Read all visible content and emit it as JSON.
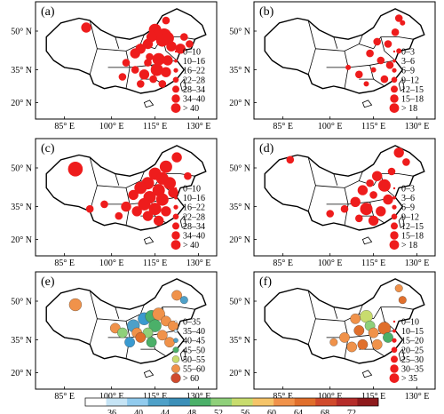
{
  "axes": {
    "lat_labels": [
      "50° N",
      "35° N",
      "20° N"
    ],
    "lon_labels": [
      "85° E",
      "100° E",
      "115° E",
      "130° E"
    ]
  },
  "panels": [
    {
      "id": "a",
      "label": "(a)",
      "legend_type": "size",
      "legend": [
        "0–10",
        "10–16",
        "16–22",
        "22–28",
        "28–34",
        "34–40",
        "> 40"
      ],
      "stations": [
        [
          0.28,
          0.22,
          3
        ],
        [
          0.72,
          0.16,
          2
        ],
        [
          0.66,
          0.24,
          4
        ],
        [
          0.68,
          0.28,
          4
        ],
        [
          0.71,
          0.29,
          5
        ],
        [
          0.73,
          0.31,
          4
        ],
        [
          0.7,
          0.33,
          4
        ],
        [
          0.64,
          0.3,
          3
        ],
        [
          0.62,
          0.36,
          3
        ],
        [
          0.75,
          0.38,
          3
        ],
        [
          0.8,
          0.4,
          3
        ],
        [
          0.58,
          0.4,
          3
        ],
        [
          0.55,
          0.44,
          3
        ],
        [
          0.63,
          0.47,
          2
        ],
        [
          0.68,
          0.49,
          4
        ],
        [
          0.73,
          0.5,
          3
        ],
        [
          0.62,
          0.52,
          2
        ],
        [
          0.67,
          0.58,
          4
        ],
        [
          0.72,
          0.6,
          3
        ],
        [
          0.6,
          0.62,
          3
        ],
        [
          0.55,
          0.58,
          2
        ],
        [
          0.48,
          0.64,
          2
        ],
        [
          0.65,
          0.66,
          2
        ],
        [
          0.7,
          0.7,
          2
        ],
        [
          0.58,
          0.7,
          2
        ],
        [
          0.82,
          0.3,
          2
        ],
        [
          0.85,
          0.36,
          2
        ],
        [
          0.5,
          0.52,
          2
        ]
      ]
    },
    {
      "id": "b",
      "label": "(b)",
      "legend_type": "size",
      "legend": [
        "0–3",
        "3–6",
        "6–9",
        "9–12",
        "12–15",
        "15–18",
        "> 18"
      ],
      "stations": [
        [
          0.8,
          0.14,
          2
        ],
        [
          0.82,
          0.18,
          1
        ],
        [
          0.78,
          0.26,
          2
        ],
        [
          0.74,
          0.36,
          2
        ],
        [
          0.68,
          0.34,
          2
        ],
        [
          0.64,
          0.44,
          2
        ],
        [
          0.7,
          0.5,
          2
        ],
        [
          0.75,
          0.54,
          2
        ],
        [
          0.66,
          0.58,
          1
        ],
        [
          0.58,
          0.62,
          2
        ],
        [
          0.72,
          0.66,
          2
        ],
        [
          0.52,
          0.56,
          1
        ],
        [
          0.62,
          0.7,
          1
        ],
        [
          0.8,
          0.42,
          1
        ]
      ]
    },
    {
      "id": "c",
      "label": "(c)",
      "legend_type": "size",
      "legend": [
        "0–10",
        "10–16",
        "16–22",
        "22–28",
        "28–34",
        "34–40",
        "> 40"
      ],
      "stations": [
        [
          0.22,
          0.26,
          5
        ],
        [
          0.72,
          0.24,
          4
        ],
        [
          0.78,
          0.16,
          3
        ],
        [
          0.66,
          0.3,
          4
        ],
        [
          0.7,
          0.34,
          4
        ],
        [
          0.74,
          0.38,
          4
        ],
        [
          0.62,
          0.38,
          4
        ],
        [
          0.58,
          0.42,
          4
        ],
        [
          0.68,
          0.44,
          4
        ],
        [
          0.76,
          0.46,
          3
        ],
        [
          0.54,
          0.48,
          3
        ],
        [
          0.63,
          0.5,
          4
        ],
        [
          0.7,
          0.52,
          4
        ],
        [
          0.6,
          0.56,
          4
        ],
        [
          0.66,
          0.6,
          4
        ],
        [
          0.72,
          0.62,
          3
        ],
        [
          0.56,
          0.62,
          3
        ],
        [
          0.5,
          0.58,
          3
        ],
        [
          0.62,
          0.66,
          3
        ],
        [
          0.68,
          0.7,
          3
        ],
        [
          0.46,
          0.66,
          2
        ],
        [
          0.38,
          0.56,
          2
        ],
        [
          0.3,
          0.6,
          2
        ],
        [
          0.84,
          0.32,
          2
        ]
      ]
    },
    {
      "id": "d",
      "label": "(d)",
      "legend_type": "size",
      "legend": [
        "0–3",
        "3–6",
        "6–9",
        "9–12",
        "12–15",
        "15–18",
        "> 18"
      ],
      "stations": [
        [
          0.2,
          0.18,
          2
        ],
        [
          0.8,
          0.12,
          3
        ],
        [
          0.84,
          0.2,
          2
        ],
        [
          0.76,
          0.28,
          2
        ],
        [
          0.68,
          0.32,
          3
        ],
        [
          0.64,
          0.38,
          2
        ],
        [
          0.72,
          0.4,
          4
        ],
        [
          0.6,
          0.44,
          3
        ],
        [
          0.66,
          0.48,
          2
        ],
        [
          0.74,
          0.52,
          3
        ],
        [
          0.56,
          0.54,
          3
        ],
        [
          0.62,
          0.6,
          4
        ],
        [
          0.7,
          0.62,
          3
        ],
        [
          0.5,
          0.6,
          2
        ],
        [
          0.58,
          0.68,
          2
        ],
        [
          0.66,
          0.7,
          3
        ],
        [
          0.42,
          0.64,
          2
        ]
      ]
    },
    {
      "id": "e",
      "label": "(e)",
      "legend_type": "color",
      "legend": [
        "0–35",
        "35–40",
        "40–45",
        "45–50",
        "50–55",
        "55–60",
        "> 60"
      ],
      "stations": [
        [
          0.22,
          0.28,
          4,
          "#f0924a"
        ],
        [
          0.44,
          0.48,
          3,
          "#f0924a"
        ],
        [
          0.48,
          0.52,
          3,
          "#8fd07a"
        ],
        [
          0.54,
          0.46,
          4,
          "#4ea0c8"
        ],
        [
          0.56,
          0.52,
          3,
          "#f0924a"
        ],
        [
          0.6,
          0.4,
          4,
          "#3a9ad0"
        ],
        [
          0.64,
          0.38,
          4,
          "#4bb069"
        ],
        [
          0.68,
          0.36,
          4,
          "#f0924a"
        ],
        [
          0.72,
          0.42,
          3,
          "#f0924a"
        ],
        [
          0.66,
          0.46,
          4,
          "#4bb069"
        ],
        [
          0.62,
          0.52,
          3,
          "#8fd07a"
        ],
        [
          0.7,
          0.54,
          3,
          "#f0924a"
        ],
        [
          0.58,
          0.56,
          3,
          "#e06f2c"
        ],
        [
          0.52,
          0.6,
          3,
          "#3a9ad0"
        ],
        [
          0.74,
          0.6,
          3,
          "#f0924a"
        ],
        [
          0.78,
          0.2,
          3,
          "#f0924a"
        ],
        [
          0.82,
          0.24,
          2,
          "#4ea0c8"
        ],
        [
          0.76,
          0.46,
          3,
          "#f0924a"
        ],
        [
          0.64,
          0.6,
          3,
          "#4bb069"
        ]
      ]
    },
    {
      "id": "f",
      "label": "(f)",
      "legend_type": "size",
      "legend": [
        "0–10",
        "10–15",
        "15–20",
        "20–25",
        "25–30",
        "30–35",
        "> 35"
      ],
      "stations": [
        [
          0.8,
          0.14,
          2,
          "#f0924a"
        ],
        [
          0.82,
          0.24,
          2,
          "#e06f2c"
        ],
        [
          0.56,
          0.4,
          3,
          "#f0924a"
        ],
        [
          0.62,
          0.38,
          4,
          "#c8dc6e"
        ],
        [
          0.64,
          0.46,
          3,
          "#8fd07a"
        ],
        [
          0.58,
          0.5,
          3,
          "#e06f2c"
        ],
        [
          0.66,
          0.52,
          3,
          "#f0924a"
        ],
        [
          0.72,
          0.48,
          4,
          "#e06f2c"
        ],
        [
          0.74,
          0.56,
          3,
          "#4bb069"
        ],
        [
          0.5,
          0.56,
          3,
          "#f0924a"
        ],
        [
          0.6,
          0.62,
          3,
          "#e06f2c"
        ],
        [
          0.54,
          0.64,
          3,
          "#f0924a"
        ],
        [
          0.68,
          0.62,
          3,
          "#f0924a"
        ],
        [
          0.44,
          0.6,
          2,
          "#f0924a"
        ]
      ]
    }
  ],
  "colorbar": {
    "tick_labels": [
      "36",
      "40",
      "44",
      "48",
      "52",
      "56",
      "60",
      "64",
      "68",
      "72"
    ],
    "colors": [
      "#ffffff",
      "#c6e4f5",
      "#91cbee",
      "#4ea0c8",
      "#3b8fb8",
      "#4bb069",
      "#8fd07a",
      "#c8dc6e",
      "#f5c469",
      "#f0924a",
      "#e06f2c",
      "#d04a2c",
      "#b52d2a",
      "#8e1a1c"
    ]
  }
}
